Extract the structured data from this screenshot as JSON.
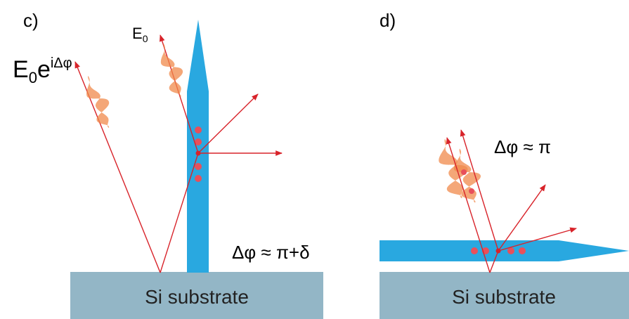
{
  "panels": [
    {
      "label": "c)",
      "field_left": {
        "base": "E",
        "sub": "0",
        "exp": "e",
        "sup": "iΔφ"
      },
      "field_right": {
        "base": "E",
        "sub": "0"
      },
      "phase": "Δφ ≈ π+δ",
      "substrate": "Si substrate"
    },
    {
      "label": "d)",
      "phase": "Δφ ≈ π",
      "substrate": "Si substrate"
    }
  ]
}
